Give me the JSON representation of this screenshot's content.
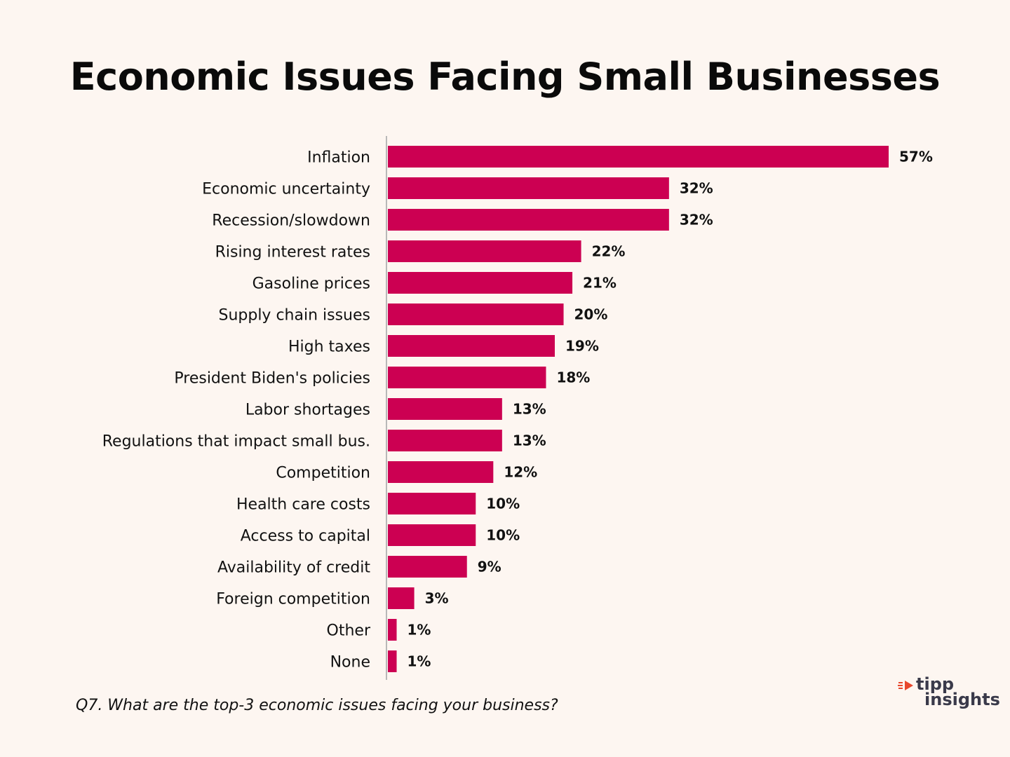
{
  "title": "Economic Issues Facing Small Businesses",
  "question": "Q7. What are the top-3 economic issues facing your business?",
  "logo": {
    "line1": "tipp",
    "line2": "insights",
    "accent_color": "#e8472d"
  },
  "bar_color": "#cc0052",
  "chart_data": {
    "type": "bar",
    "orientation": "horizontal",
    "title": "Economic Issues Facing Small Businesses",
    "xlabel": "",
    "ylabel": "",
    "value_suffix": "%",
    "xlim": [
      0,
      57
    ],
    "grid": false,
    "categories": [
      "Inflation",
      "Economic uncertainty",
      "Recession/slowdown",
      "Rising interest rates",
      "Gasoline prices",
      "Supply chain issues",
      "High taxes",
      "President Biden's policies",
      "Labor shortages",
      "Regulations that impact small bus.",
      "Competition",
      "Health care costs",
      "Access to capital",
      "Availability of credit",
      "Foreign competition",
      "Other",
      "None"
    ],
    "values": [
      57,
      32,
      32,
      22,
      21,
      20,
      19,
      18,
      13,
      13,
      12,
      10,
      10,
      9,
      3,
      1,
      1
    ],
    "labels": [
      "57%",
      "32%",
      "32%",
      "22%",
      "21%",
      "20%",
      "19%",
      "18%",
      "13%",
      "13%",
      "12%",
      "10%",
      "10%",
      "9%",
      "3%",
      "1%",
      "1%"
    ]
  }
}
